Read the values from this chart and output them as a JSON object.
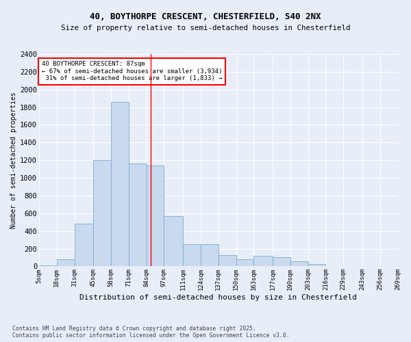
{
  "title1": "40, BOYTHORPE CRESCENT, CHESTERFIELD, S40 2NX",
  "title2": "Size of property relative to semi-detached houses in Chesterfield",
  "xlabel": "Distribution of semi-detached houses by size in Chesterfield",
  "ylabel": "Number of semi-detached properties",
  "footnote": "Contains HM Land Registry data © Crown copyright and database right 2025.\nContains public sector information licensed under the Open Government Licence v3.0.",
  "annotation_title": "40 BOYTHORPE CRESCENT: 87sqm",
  "annotation_line1": "← 67% of semi-detached houses are smaller (3,934)",
  "annotation_line2": " 31% of semi-detached houses are larger (1,833) →",
  "property_size": 87,
  "bin_edges": [
    5,
    18,
    31,
    45,
    58,
    71,
    84,
    97,
    111,
    124,
    137,
    150,
    163,
    177,
    190,
    203,
    216,
    229,
    243,
    256,
    269
  ],
  "bar_heights": [
    10,
    80,
    480,
    1200,
    1860,
    1160,
    1140,
    570,
    250,
    250,
    130,
    80,
    120,
    100,
    60,
    30,
    0,
    0,
    0,
    0
  ],
  "bar_color": "#c9d9ee",
  "bar_edge_color": "#7aadd4",
  "vline_color": "red",
  "background_color": "#e8eef8",
  "annotation_box_color": "white",
  "annotation_box_edge": "red",
  "ylim": [
    0,
    2400
  ],
  "yticks": [
    0,
    200,
    400,
    600,
    800,
    1000,
    1200,
    1400,
    1600,
    1800,
    2000,
    2200,
    2400
  ]
}
